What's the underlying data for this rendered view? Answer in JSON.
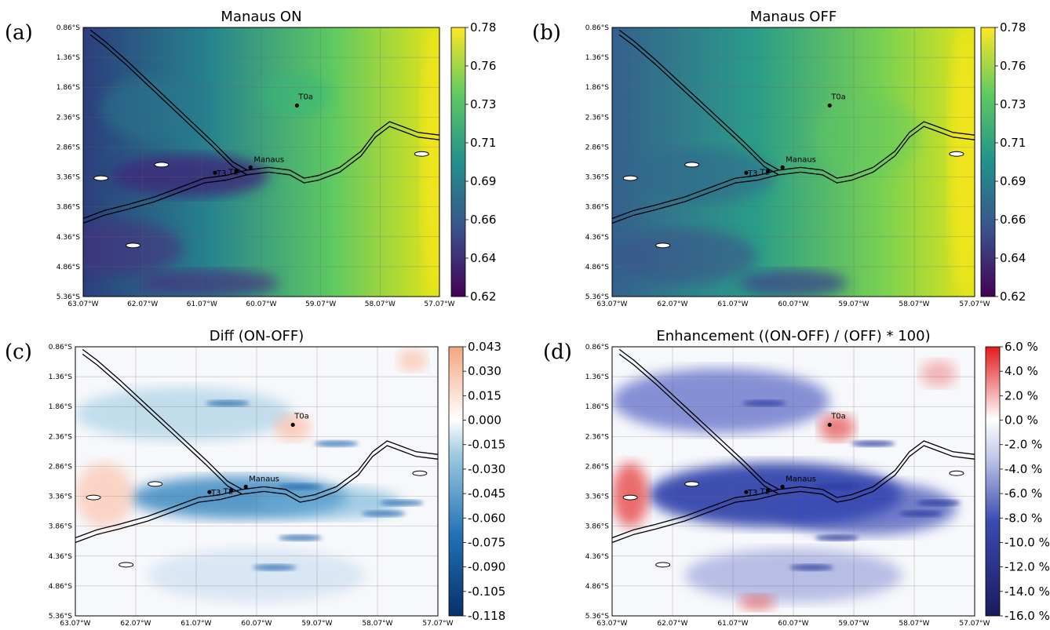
{
  "panels": [
    {
      "id": "a",
      "letter": "(a)",
      "title": "Manaus ON",
      "colormap": "viridis",
      "colorbar_ticks": [
        "0.78",
        "0.76",
        "0.73",
        "0.71",
        "0.69",
        "0.66",
        "0.64",
        "0.62"
      ],
      "markers": {
        "t0a": "T0a",
        "manaus": "Manaus",
        "t3": "T3",
        "t2": "T2"
      }
    },
    {
      "id": "b",
      "letter": "(b)",
      "title": "Manaus OFF",
      "colormap": "viridis",
      "colorbar_ticks": [
        "0.78",
        "0.76",
        "0.73",
        "0.71",
        "0.69",
        "0.66",
        "0.64",
        "0.62"
      ],
      "markers": {
        "t0a": "T0a",
        "manaus": "Manaus",
        "t3": "T3",
        "t2": "T2"
      }
    },
    {
      "id": "c",
      "letter": "(c)",
      "title": "Diff (ON-OFF)",
      "colormap": "diverging-blue-red",
      "colorbar_ticks": [
        "0.043",
        "0.030",
        "0.015",
        "0.000",
        "-0.015",
        "-0.030",
        "-0.045",
        "-0.060",
        "-0.075",
        "-0.090",
        "-0.105",
        "-0.118"
      ],
      "markers": {
        "t0a": "T0a",
        "manaus": "Manaus",
        "t3": "T3",
        "t2": "T2"
      }
    },
    {
      "id": "d",
      "letter": "(d)",
      "title": "Enhancement ((ON-OFF) / (OFF) * 100)",
      "colormap": "diverging-blue-red",
      "colorbar_ticks": [
        "6.0 %",
        "4.0 %",
        "2.0 %",
        "0.0 %",
        "-2.0 %",
        "-4.0 %",
        "-6.0 %",
        "-8.0 %",
        "-10.0 %",
        "-12.0 %",
        "-14.0 %",
        "-16.0 %"
      ],
      "markers": {
        "t0a": "T0a",
        "manaus": "Manaus",
        "t3": "T3",
        "t2": "T2"
      }
    }
  ],
  "lat_ticks": [
    "0.86°S",
    "1.36°S",
    "1.86°S",
    "2.36°S",
    "2.86°S",
    "3.36°S",
    "3.86°S",
    "4.36°S",
    "4.86°S",
    "5.36°S"
  ],
  "lon_ticks": [
    "63.07°W",
    "62.07°W",
    "61.07°W",
    "60.07°W",
    "59.07°W",
    "58.07°W",
    "57.07°W"
  ],
  "colors": {
    "viridis": [
      "#440154",
      "#3b528b",
      "#21918c",
      "#5ec962",
      "#fde725"
    ],
    "diverging": [
      "#08306b",
      "#2171b5",
      "#6baed6",
      "#deebf7",
      "#ffffff",
      "#fcbba1",
      "#de2d26"
    ]
  }
}
